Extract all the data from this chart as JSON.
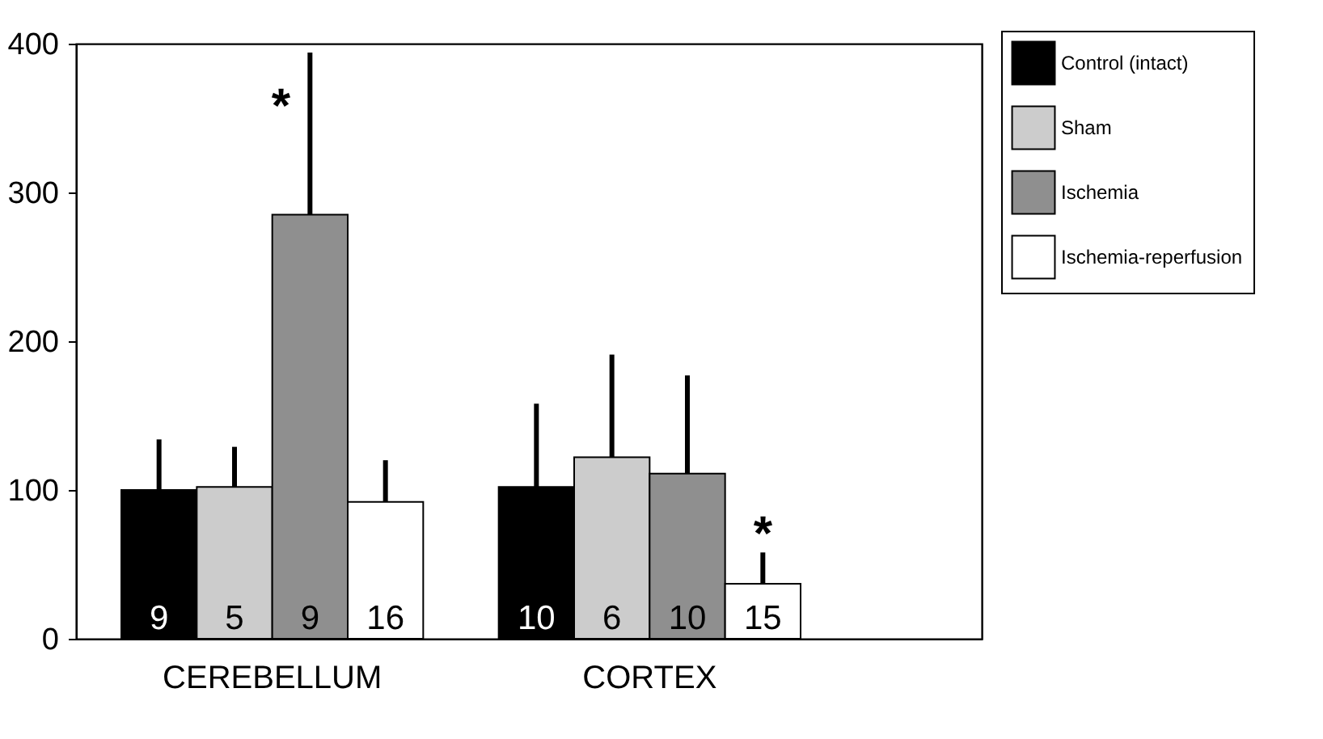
{
  "chart_data": {
    "type": "bar",
    "categories": [
      "CEREBELLUM",
      "CORTEX"
    ],
    "series": [
      {
        "name": "Control (intact)",
        "color": "#000000",
        "values": [
          100,
          102
        ],
        "errors": [
          [
            100,
            134
          ],
          [
            102,
            158
          ]
        ]
      },
      {
        "name": "Sham",
        "color": "#cccccc",
        "values": [
          102,
          122
        ],
        "errors": [
          [
            102,
            129
          ],
          [
            122,
            191
          ]
        ]
      },
      {
        "name": "Ischemia",
        "color": "#8f8f8f",
        "values": [
          285,
          111
        ],
        "errors": [
          [
            285,
            394
          ],
          [
            111,
            177
          ]
        ]
      },
      {
        "name": "Ischemia-reperfusion",
        "color": "#ffffff",
        "values": [
          92,
          37
        ],
        "errors": [
          [
            92,
            120
          ],
          [
            37,
            58
          ]
        ]
      }
    ],
    "ylim": [
      0,
      400
    ],
    "yticks": [
      0,
      100,
      200,
      300,
      400
    ],
    "grid": false,
    "legend": "top right",
    "annotations": [
      "9",
      "5",
      "9",
      "16",
      "10",
      "6",
      "10",
      "15",
      {
        "text": "*",
        "x": "CEREBELLUM",
        "y": 285
      },
      {
        "text": "*",
        "x": "CORTEX",
        "y": 37
      }
    ]
  }
}
